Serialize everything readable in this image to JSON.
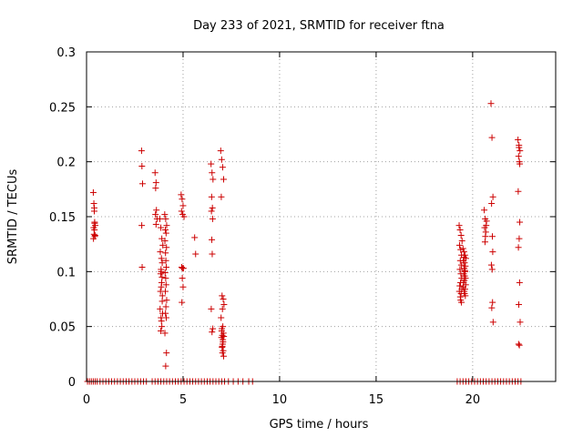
{
  "chart_data": {
    "type": "scatter",
    "title": "Day 233 of 2021, SRMTID for receiver ftna",
    "xlabel": "GPS time / hours",
    "ylabel": "SRMTID / TECUs",
    "xlim": [
      0,
      24.3
    ],
    "ylim": [
      0,
      0.3
    ],
    "x_ticks": [
      0,
      5,
      10,
      15,
      20
    ],
    "x_tick_labels": [
      "0",
      "5",
      "10",
      "15",
      "20"
    ],
    "y_ticks": [
      0,
      0.05,
      0.1,
      0.15,
      0.2,
      0.25,
      0.3
    ],
    "y_tick_labels": [
      "0",
      "0.05",
      "0.1",
      "0.15",
      "0.2",
      "0.25",
      "0.3"
    ],
    "grid": true,
    "marker": "+",
    "color": "#cc0000",
    "series": [
      {
        "x": [
          0.35,
          0.38,
          0.4,
          0.42,
          0.45,
          0.37,
          0.41,
          0.39,
          0.43,
          0.36,
          0.44,
          0.4,
          0.42,
          2.85,
          2.87,
          2.9,
          2.86,
          2.88,
          3.55,
          3.6,
          3.58,
          3.62,
          3.57,
          3.65,
          3.6,
          3.8,
          3.85,
          3.9,
          3.95,
          3.82,
          3.88,
          3.92,
          3.86,
          3.84,
          3.91,
          3.89,
          3.87,
          3.83,
          3.93,
          3.81,
          3.94,
          3.86,
          3.88,
          3.9,
          3.85,
          3.92,
          3.87,
          4.05,
          4.1,
          4.15,
          4.08,
          4.12,
          4.06,
          4.14,
          4.09,
          4.11,
          4.13,
          4.07,
          4.1,
          4.12,
          4.08,
          4.15,
          4.11,
          4.09,
          4.13,
          4.06,
          4.14,
          4.1,
          4.9,
          4.95,
          5.0,
          4.92,
          4.98,
          5.05,
          4.93,
          4.97,
          5.02,
          4.96,
          5.0,
          4.94,
          5.6,
          5.65,
          6.45,
          6.5,
          6.55,
          6.48,
          6.52,
          6.47,
          6.53,
          6.49,
          6.51,
          6.46,
          6.54,
          6.5,
          6.95,
          7.0,
          7.05,
          7.1,
          6.98,
          7.02,
          7.08,
          7.12,
          7.04,
          6.97,
          7.06,
          7.01,
          7.09,
          7.03,
          7.11,
          6.99,
          7.07,
          7.05,
          7.02,
          7.08,
          7.04,
          7.1,
          7.06,
          7.0,
          7.03,
          19.3,
          19.35,
          19.4,
          19.45,
          19.32,
          19.38,
          19.42,
          19.36,
          19.41,
          19.34,
          19.39,
          19.43,
          19.37,
          19.33,
          19.44,
          19.31,
          19.4,
          19.36,
          19.38,
          19.42,
          19.5,
          19.55,
          19.6,
          19.65,
          19.52,
          19.58,
          19.62,
          19.56,
          19.61,
          19.54,
          19.59,
          19.63,
          19.57,
          19.53,
          19.64,
          19.51,
          19.6,
          19.56,
          19.58,
          19.62,
          19.55,
          19.6,
          20.6,
          20.65,
          20.7,
          20.62,
          20.68,
          20.66,
          20.64,
          20.72,
          20.95,
          21.0,
          21.05,
          20.98,
          21.02,
          21.04,
          20.97,
          21.01,
          21.03,
          20.99,
          21.06,
          22.35,
          22.4,
          22.45,
          22.38,
          22.42,
          22.36,
          22.44,
          22.41,
          22.37,
          22.43,
          22.39,
          22.46,
          22.38,
          22.42,
          22.4,
          22.44
        ],
        "y": [
          0.172,
          0.162,
          0.155,
          0.145,
          0.142,
          0.14,
          0.138,
          0.134,
          0.132,
          0.13,
          0.133,
          0.158,
          0.144,
          0.21,
          0.196,
          0.18,
          0.142,
          0.104,
          0.19,
          0.181,
          0.176,
          0.156,
          0.152,
          0.148,
          0.143,
          0.148,
          0.14,
          0.13,
          0.124,
          0.118,
          0.112,
          0.108,
          0.102,
          0.098,
          0.095,
          0.09,
          0.086,
          0.082,
          0.078,
          0.066,
          0.062,
          0.058,
          0.055,
          0.05,
          0.046,
          0.073,
          0.1,
          0.152,
          0.148,
          0.142,
          0.138,
          0.135,
          0.128,
          0.122,
          0.117,
          0.11,
          0.104,
          0.099,
          0.094,
          0.088,
          0.082,
          0.074,
          0.068,
          0.062,
          0.058,
          0.044,
          0.026,
          0.014,
          0.17,
          0.166,
          0.16,
          0.155,
          0.152,
          0.15,
          0.104,
          0.103,
          0.103,
          0.094,
          0.086,
          0.072,
          0.131,
          0.116,
          0.198,
          0.19,
          0.184,
          0.168,
          0.158,
          0.155,
          0.148,
          0.129,
          0.116,
          0.066,
          0.048,
          0.045,
          0.21,
          0.202,
          0.195,
          0.184,
          0.168,
          0.078,
          0.075,
          0.07,
          0.066,
          0.058,
          0.05,
          0.048,
          0.044,
          0.042,
          0.041,
          0.04,
          0.036,
          0.034,
          0.031,
          0.028,
          0.026,
          0.023,
          0.038,
          0.046,
          0.032,
          0.142,
          0.138,
          0.133,
          0.128,
          0.124,
          0.12,
          0.115,
          0.11,
          0.106,
          0.102,
          0.098,
          0.094,
          0.09,
          0.087,
          0.084,
          0.082,
          0.08,
          0.077,
          0.074,
          0.072,
          0.121,
          0.118,
          0.115,
          0.112,
          0.11,
          0.108,
          0.105,
          0.103,
          0.1,
          0.098,
          0.096,
          0.094,
          0.092,
          0.09,
          0.088,
          0.086,
          0.084,
          0.082,
          0.08,
          0.078,
          0.113,
          0.101,
          0.156,
          0.148,
          0.142,
          0.14,
          0.136,
          0.132,
          0.127,
          0.146,
          0.253,
          0.222,
          0.168,
          0.162,
          0.132,
          0.118,
          0.106,
          0.102,
          0.072,
          0.067,
          0.054,
          0.22,
          0.215,
          0.21,
          0.205,
          0.2,
          0.173,
          0.145,
          0.13,
          0.122,
          0.09,
          0.07,
          0.054,
          0.034,
          0.033,
          0.213,
          0.198
        ]
      },
      {
        "x": [
          0.05,
          0.15,
          0.25,
          0.35,
          0.45,
          0.55,
          0.7,
          0.85,
          1.0,
          1.15,
          1.3,
          1.45,
          1.6,
          1.75,
          1.9,
          2.05,
          2.2,
          2.35,
          2.5,
          2.65,
          2.8,
          2.95,
          3.1,
          3.4,
          3.55,
          3.7,
          3.85,
          4.0,
          4.15,
          4.3,
          4.45,
          4.6,
          4.75,
          4.9,
          5.05,
          5.2,
          5.35,
          5.5,
          5.65,
          5.8,
          5.95,
          6.1,
          6.25,
          6.4,
          6.55,
          6.7,
          6.85,
          7.0,
          7.15,
          7.35,
          7.6,
          7.85,
          8.1,
          8.4,
          8.6,
          19.2,
          19.35,
          19.5,
          19.65,
          19.8,
          19.95,
          20.1,
          20.25,
          20.4,
          20.55,
          20.7,
          20.85,
          21.0,
          21.15,
          21.3,
          21.45,
          21.6,
          21.75,
          21.9,
          22.05,
          22.2,
          22.35,
          22.5
        ],
        "y": [
          0,
          0,
          0,
          0,
          0,
          0,
          0,
          0,
          0,
          0,
          0,
          0,
          0,
          0,
          0,
          0,
          0,
          0,
          0,
          0,
          0,
          0,
          0,
          0,
          0,
          0,
          0,
          0,
          0,
          0,
          0,
          0,
          0,
          0,
          0,
          0,
          0,
          0,
          0,
          0,
          0,
          0,
          0,
          0,
          0,
          0,
          0,
          0,
          0,
          0,
          0,
          0,
          0,
          0,
          0,
          0,
          0,
          0,
          0,
          0,
          0,
          0,
          0,
          0,
          0,
          0,
          0,
          0,
          0,
          0,
          0,
          0,
          0,
          0,
          0,
          0,
          0,
          0
        ]
      }
    ]
  }
}
